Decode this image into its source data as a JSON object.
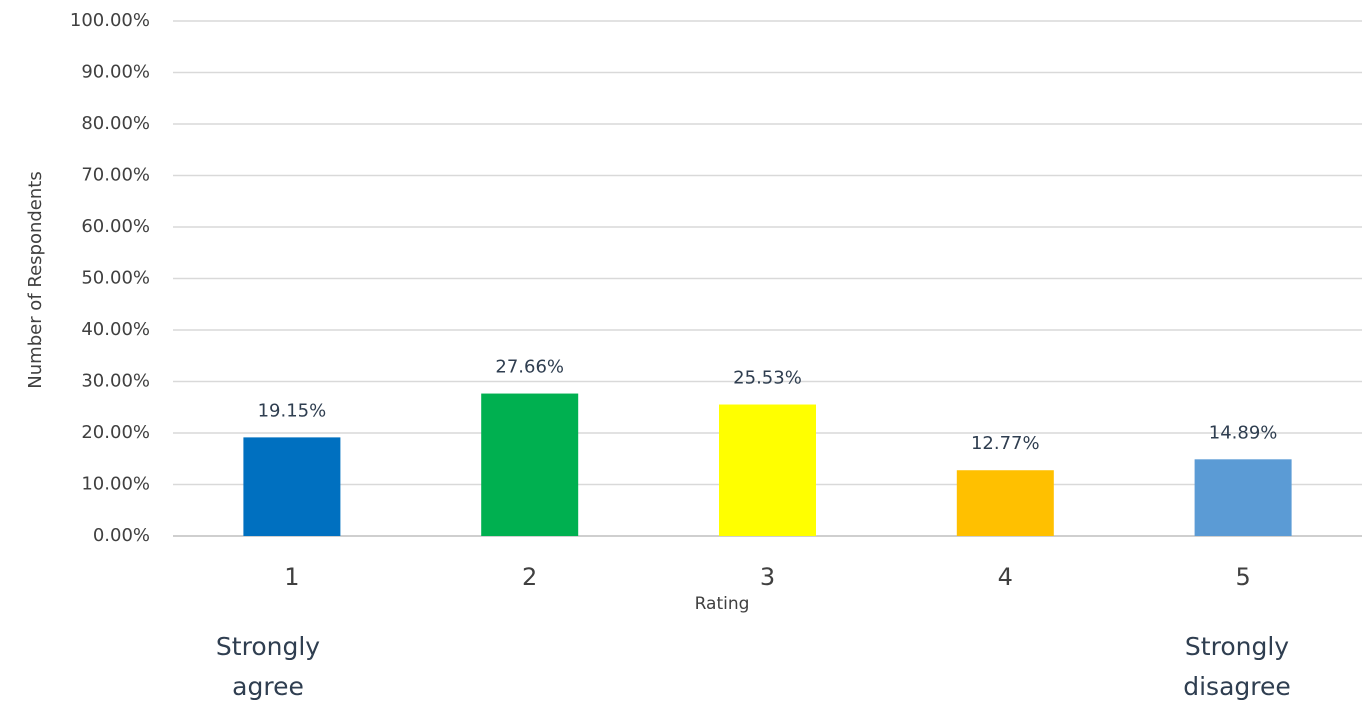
{
  "chart_data": {
    "type": "bar",
    "x_label": "Rating",
    "y_label": "Number of Respondents",
    "categories": [
      "1",
      "2",
      "3",
      "4",
      "5"
    ],
    "values": [
      19.15,
      27.66,
      25.53,
      12.77,
      14.89
    ],
    "value_labels": [
      "19.15%",
      "27.66%",
      "25.53%",
      "12.77%",
      "14.89%"
    ],
    "colors": [
      "#0070c0",
      "#00b050",
      "#ffff00",
      "#ffc000",
      "#5b9bd5"
    ],
    "ylim": [
      0,
      100
    ],
    "yticks": [
      {
        "value": 0,
        "label": "0.00%"
      },
      {
        "value": 10,
        "label": "10.00%"
      },
      {
        "value": 20,
        "label": "20.00%"
      },
      {
        "value": 30,
        "label": "30.00%"
      },
      {
        "value": 40,
        "label": "40.00%"
      },
      {
        "value": 50,
        "label": "50.00%"
      },
      {
        "value": 60,
        "label": "60.00%"
      },
      {
        "value": 70,
        "label": "70.00%"
      },
      {
        "value": 80,
        "label": "80.00%"
      },
      {
        "value": 90,
        "label": "90.00%"
      },
      {
        "value": 100,
        "label": "100.00%"
      }
    ],
    "grid": true,
    "annotations": [
      {
        "lines": [
          "Strongly",
          "agree"
        ]
      },
      {
        "lines": [
          "Strongly",
          "disagree"
        ]
      }
    ]
  }
}
